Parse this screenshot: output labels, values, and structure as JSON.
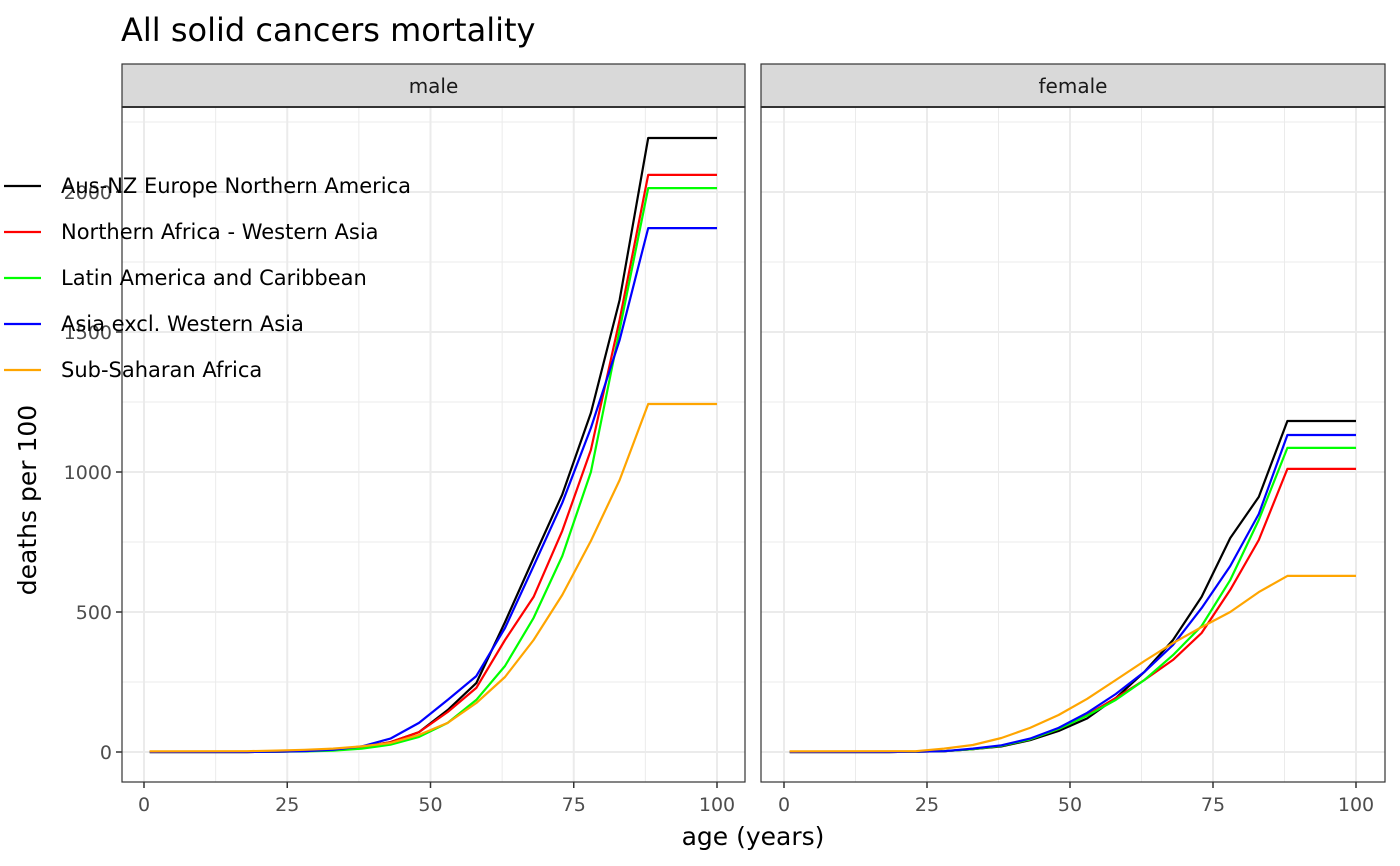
{
  "chart_data": {
    "type": "line",
    "title": "All solid cancers mortality",
    "xlabel": "age (years)",
    "ylabel": "deaths per 100",
    "xlim": [
      0,
      100
    ],
    "ylim": [
      -100,
      2300
    ],
    "x_ticks": [
      0,
      25,
      50,
      75,
      100
    ],
    "x_tick_labels": [
      "0",
      "25",
      "50",
      "75",
      "100"
    ],
    "y_ticks": [
      0,
      500,
      1000,
      1500,
      2000
    ],
    "y_tick_labels": [
      "0",
      "500",
      "1000",
      "1500",
      "2000"
    ],
    "grid": true,
    "legend_position": "left (overlapping y axis)",
    "x": [
      1,
      18,
      23,
      28,
      33,
      38,
      43,
      48,
      53,
      58,
      63,
      68,
      73,
      78,
      83,
      88,
      100
    ],
    "facets": [
      {
        "label": "male",
        "series": [
          {
            "name": "Aus-NZ Europe Northern America",
            "color": "#000000",
            "values": [
              0,
              0,
              1,
              3,
              8,
              18,
              35,
              71,
              150,
              246,
              464,
              693,
              920,
              1211,
              1614,
              2193,
              2193
            ]
          },
          {
            "name": "Northern Africa - Western Asia",
            "color": "#ff0000",
            "values": [
              0,
              0,
              1,
              3,
              8,
              18,
              35,
              71,
              143,
              229,
              400,
              554,
              790,
              1079,
              1543,
              2061,
              2061
            ]
          },
          {
            "name": "Latin America and Caribbean",
            "color": "#00ff00",
            "values": [
              0,
              0,
              1,
              2,
              5,
              12,
              26,
              54,
              104,
              186,
              307,
              479,
              700,
              1000,
              1507,
              2014,
              2014
            ]
          },
          {
            "name": "Asia excl. Western Asia",
            "color": "#0000ff",
            "values": [
              0,
              0,
              1,
              3,
              8,
              20,
              48,
              104,
              186,
              271,
              443,
              664,
              890,
              1157,
              1471,
              1871,
              1871
            ]
          },
          {
            "name": "Sub-Saharan Africa",
            "color": "#ffa500",
            "values": [
              2,
              3,
              5,
              8,
              12,
              20,
              32,
              61,
              104,
              175,
              268,
              400,
              561,
              754,
              971,
              1243,
              1243
            ]
          }
        ]
      },
      {
        "label": "female",
        "series": [
          {
            "name": "Aus-NZ Europe Northern America",
            "color": "#000000",
            "values": [
              0,
              0,
              1,
              3,
              10,
              20,
              42,
              75,
              120,
              193,
              286,
              400,
              554,
              764,
              911,
              1182,
              1182
            ]
          },
          {
            "name": "Northern Africa - Western Asia",
            "color": "#ff0000",
            "values": [
              0,
              0,
              1,
              3,
              10,
              22,
              45,
              82,
              132,
              193,
              257,
              329,
              425,
              579,
              757,
              1011,
              1011
            ]
          },
          {
            "name": "Latin America and Caribbean",
            "color": "#00ff00",
            "values": [
              0,
              0,
              1,
              3,
              10,
              22,
              45,
              82,
              130,
              186,
              257,
              346,
              450,
              614,
              829,
              1086,
              1086
            ]
          },
          {
            "name": "Asia excl. Western Asia",
            "color": "#0000ff",
            "values": [
              0,
              0,
              1,
              3,
              12,
              24,
              48,
              86,
              140,
              207,
              286,
              382,
              514,
              664,
              850,
              1132,
              1132
            ]
          },
          {
            "name": "Sub-Saharan Africa",
            "color": "#ffa500",
            "values": [
              2,
              3,
              3,
              12,
              25,
              50,
              86,
              132,
              190,
              257,
              325,
              389,
              446,
              500,
              571,
              629,
              629
            ]
          }
        ]
      }
    ]
  }
}
